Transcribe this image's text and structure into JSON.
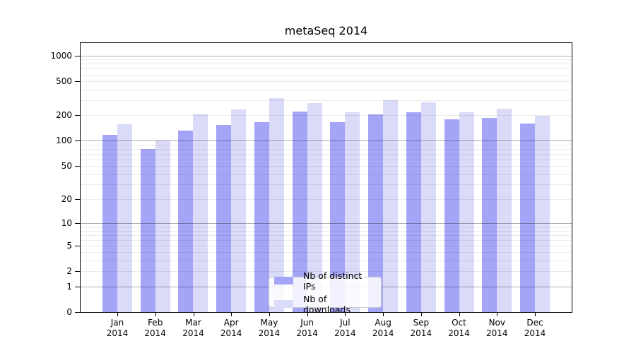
{
  "chart_data": {
    "type": "bar",
    "title": "metaSeq 2014",
    "y_scale": "log10(1+x)",
    "categories": [
      "Jan",
      "Feb",
      "Mar",
      "Apr",
      "May",
      "Jun",
      "Jul",
      "Aug",
      "Sep",
      "Oct",
      "Nov",
      "Dec"
    ],
    "x_year_suffix": "2014",
    "series": [
      {
        "name": "Nb of distinct IPs",
        "color": "#a5a5f8",
        "values": [
          118,
          80,
          131,
          153,
          166,
          220,
          165,
          204,
          215,
          180,
          186,
          161
        ]
      },
      {
        "name": "Nb of downloads",
        "color": "#dadaf9",
        "values": [
          155,
          100,
          205,
          233,
          318,
          280,
          215,
          298,
          285,
          218,
          240,
          195
        ]
      }
    ],
    "y_ticks": [
      0,
      1,
      2,
      5,
      10,
      20,
      50,
      100,
      200,
      500,
      1000
    ],
    "ylim": [
      0,
      1400
    ],
    "grid": {
      "major_at": [
        1,
        10,
        100,
        1000
      ],
      "minor_rule": "2-9 per decade",
      "major_color": "rgba(0,0,0,0.32)",
      "minor_color": "rgba(0,0,0,0.08)"
    },
    "legend_position": "lower-center",
    "axis_color": "#000000",
    "background_color": "#ffffff"
  }
}
